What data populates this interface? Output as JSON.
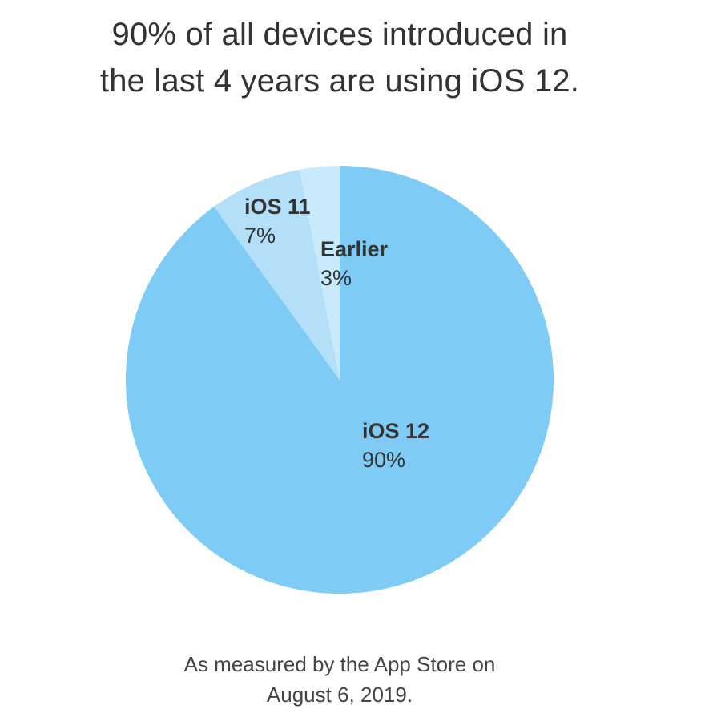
{
  "title": {
    "line1": "90% of all devices introduced in",
    "line2": "the last 4 years are using iOS 12."
  },
  "caption": {
    "line1": "As measured by the App Store on",
    "line2": "August 6, 2019."
  },
  "colors": {
    "ios12": "#7ECBF5",
    "ios11": "#B3E0F8",
    "earlier": "#C9EAFB"
  },
  "slices": [
    {
      "name": "iOS 12",
      "pct_label": "90%"
    },
    {
      "name": "iOS 11",
      "pct_label": "7%"
    },
    {
      "name": "Earlier",
      "pct_label": "3%"
    }
  ],
  "chart_data": {
    "type": "pie",
    "title": "90% of all devices introduced in the last 4 years are using iOS 12.",
    "subtitle": "As measured by the App Store on August 6, 2019.",
    "categories": [
      "iOS 12",
      "iOS 11",
      "Earlier"
    ],
    "values": [
      90,
      7,
      3
    ],
    "unit": "%",
    "colors": [
      "#7ECBF5",
      "#B3E0F8",
      "#C9EAFB"
    ],
    "legend": "none (direct labels on slices)",
    "start_angle": "12 o'clock, Earlier and iOS 11 counterclockwise, iOS 12 clockwise"
  }
}
